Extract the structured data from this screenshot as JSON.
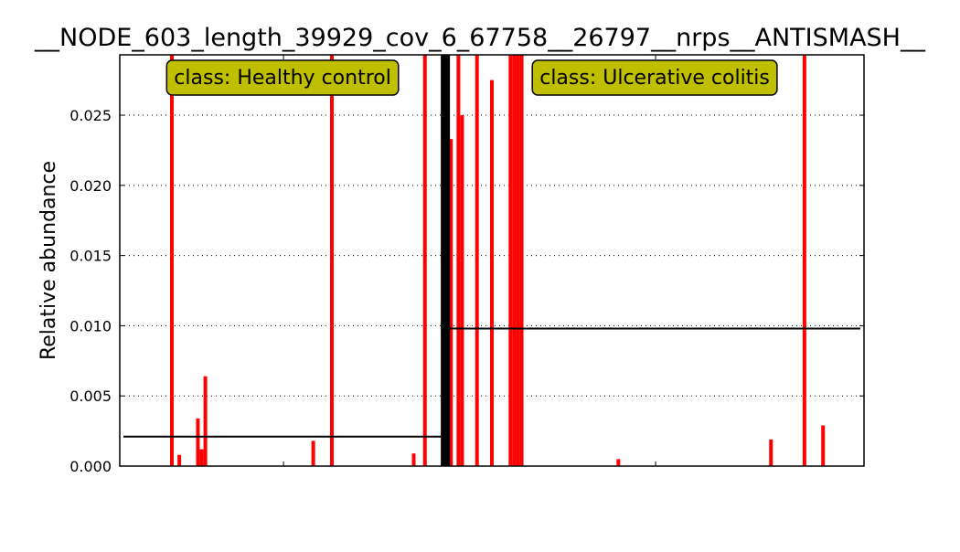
{
  "chart_data": {
    "type": "bar",
    "title": "__NODE_603_length_39929_cov_6_67758__26797__nrps__ANTISMASH__",
    "xlabel": "",
    "ylabel": "Relative abundance",
    "ylim": [
      0,
      0.0293
    ],
    "yticks": [
      "0.000",
      "0.005",
      "0.010",
      "0.015",
      "0.020",
      "0.025"
    ],
    "grid": "horizontal-dotted",
    "classes": [
      {
        "label": "class: Healthy control",
        "mean": 0.0021
      },
      {
        "label": "class: Ulcerative colitis",
        "mean": 0.0098
      }
    ],
    "class_label_color": "#bfbf00",
    "bar_color": "#ff0000",
    "divider_color": "#000000",
    "bars": [
      {
        "sample": 14,
        "value": 0.03,
        "class": 0
      },
      {
        "sample": 16,
        "value": 0.0008,
        "class": 0
      },
      {
        "sample": 21,
        "value": 0.0034,
        "class": 0
      },
      {
        "sample": 22,
        "value": 0.0012,
        "class": 0
      },
      {
        "sample": 23,
        "value": 0.0064,
        "class": 0
      },
      {
        "sample": 52,
        "value": 0.0018,
        "class": 0
      },
      {
        "sample": 57,
        "value": 0.03,
        "class": 0
      },
      {
        "sample": 79,
        "value": 0.0009,
        "class": 0
      },
      {
        "sample": 82,
        "value": 0.03,
        "class": 0
      },
      {
        "sample": 89,
        "value": 0.0233,
        "class": 1
      },
      {
        "sample": 91,
        "value": 0.03,
        "class": 1
      },
      {
        "sample": 92,
        "value": 0.025,
        "class": 1
      },
      {
        "sample": 96,
        "value": 0.03,
        "class": 1
      },
      {
        "sample": 100,
        "value": 0.0275,
        "class": 1
      },
      {
        "sample": 105,
        "value": 0.03,
        "class": 1
      },
      {
        "sample": 106,
        "value": 0.03,
        "class": 1
      },
      {
        "sample": 107,
        "value": 0.03,
        "class": 1
      },
      {
        "sample": 108,
        "value": 0.03,
        "class": 1
      },
      {
        "sample": 134,
        "value": 0.0005,
        "class": 1
      },
      {
        "sample": 175,
        "value": 0.0019,
        "class": 1
      },
      {
        "sample": 184,
        "value": 0.03,
        "class": 1
      },
      {
        "sample": 189,
        "value": 0.0029,
        "class": 1
      }
    ],
    "n_samples": 200,
    "class_boundary": 87.5
  }
}
